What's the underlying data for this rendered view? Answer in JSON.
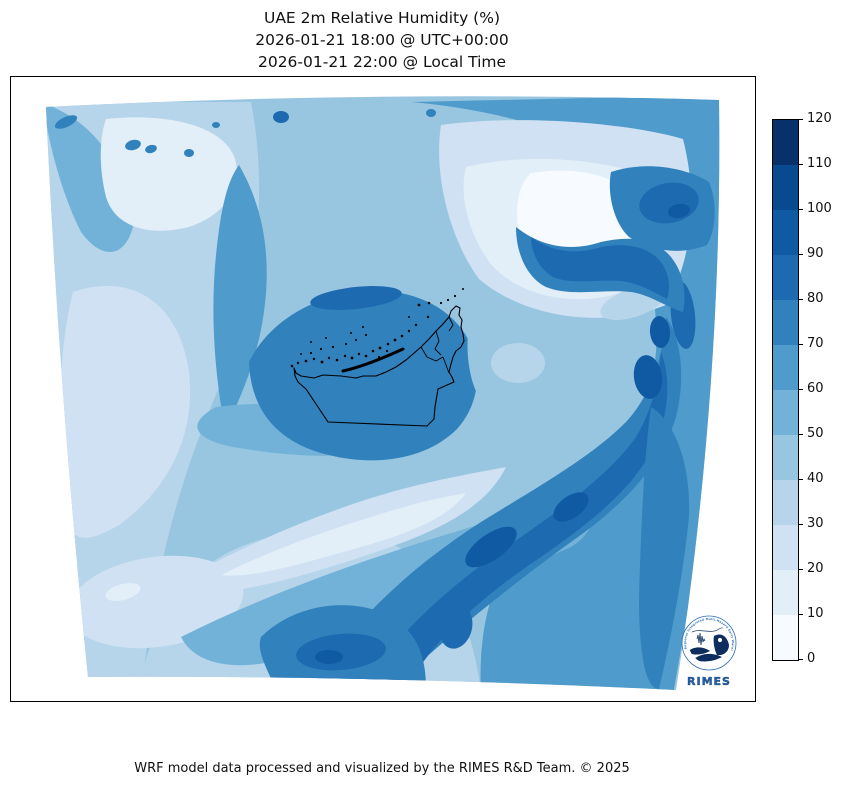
{
  "title": {
    "line1": "UAE 2m Relative Humidity (%)",
    "line2": "2026-01-21 18:00 @ UTC+00:00",
    "line3": "2026-01-21 22:00 @ Local Time"
  },
  "footer": {
    "credit": "WRF model data processed and visualized by the RIMES R&D Team. © 2025"
  },
  "logo": {
    "ring_text": "Regional Integrated Multi-Hazard Early Warning System",
    "wordmark": "RIMES",
    "accent_blue": "#2263ae",
    "navy": "#0d2d5e"
  },
  "chart_data": {
    "type": "filled_contour_map",
    "variable": "2m Relative Humidity",
    "units": "%",
    "region": "United Arab Emirates and surrounding WRF model domain (Persian Gulf, Gulf of Oman, Saudi interior)",
    "valid_time_utc": "2026-01-21 18:00 @ UTC+00:00",
    "valid_time_local": "2026-01-21 22:00 @ Local Time",
    "overlay": "UAE national and emirate boundaries with coastal islands (black outline)",
    "colormap": "Blues (12 discrete bins)",
    "colorbar": {
      "min": 0,
      "max": 120,
      "step": 10,
      "levels": [
        0,
        10,
        20,
        30,
        40,
        50,
        60,
        70,
        80,
        90,
        100,
        110,
        120
      ],
      "tick_labels": [
        "0",
        "10",
        "20",
        "30",
        "40",
        "50",
        "60",
        "70",
        "80",
        "90",
        "100",
        "110",
        "120"
      ],
      "position": "right",
      "orientation": "vertical"
    },
    "palette": {
      "0-10": "#f7fbff",
      "10-20": "#e2eef8",
      "20-30": "#cfe1f2",
      "30-40": "#b7d5ea",
      "40-50": "#98c6e0",
      "50-60": "#73b2d8",
      "60-70": "#4f9bcb",
      "70-80": "#3181bd",
      "80-90": "#1e6ab0",
      "90-100": "#0f5aa3",
      "100-110": "#084a8f",
      "110-120": "#08306b"
    },
    "described_regions": [
      {
        "area": "northwest interior / Saudi desert (left of domain)",
        "approx_rh_pct": "20-40"
      },
      {
        "area": "pale patch near top-left",
        "approx_rh_pct": "10-20"
      },
      {
        "area": "north-central pale dry region",
        "approx_rh_pct": "0-20"
      },
      {
        "area": "Persian Gulf along UAE coast and western UAE",
        "approx_rh_pct": "60-80"
      },
      {
        "area": "mountain band northeast (Musandam / Hajar), snaking dark band",
        "approx_rh_pct": "80-110"
      },
      {
        "area": "light dry valley streak southwest of UAE",
        "approx_rh_pct": "10-30"
      },
      {
        "area": "broad moist diagonal band southeast of UAE",
        "approx_rh_pct": "80-110"
      },
      {
        "area": "bottom-center moist blob",
        "approx_rh_pct": "80-100"
      },
      {
        "area": "southeast / bottom-right quadrant (Gulf of Oman side)",
        "approx_rh_pct": "60-70"
      }
    ],
    "grid": false,
    "axis_labels": "none (bare map frame)"
  }
}
